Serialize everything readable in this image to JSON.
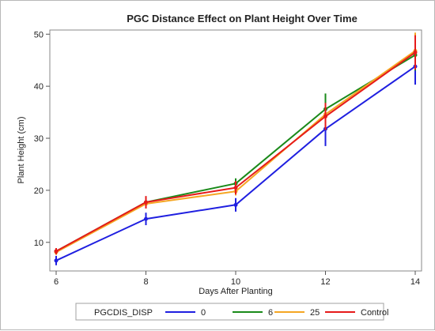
{
  "chart_data": {
    "type": "line",
    "title": "PGC Distance Effect on Plant Height Over Time",
    "xlabel": "Days After Planting",
    "ylabel": "Plant Height (cm)",
    "x": [
      6,
      8,
      10,
      12,
      14
    ],
    "xlim": [
      6,
      14
    ],
    "ylim": [
      4.5,
      50.8
    ],
    "xticks": [
      6,
      8,
      10,
      12,
      14
    ],
    "yticks": [
      10,
      20,
      30,
      40,
      50
    ],
    "grid": false,
    "legend": {
      "title": "PGCDIS_DISP",
      "placement": "bottom"
    },
    "series": [
      {
        "name": "0",
        "color": "#1f1fe0",
        "values": [
          6.5,
          14.5,
          17.2,
          31.8,
          43.8
        ],
        "errors": [
          0.9,
          1.2,
          1.3,
          3.3,
          3.5
        ]
      },
      {
        "name": "6",
        "color": "#1a8a1a",
        "values": [
          8.3,
          17.7,
          21.3,
          35.6,
          46.0
        ],
        "errors": [
          0.5,
          0.8,
          1.0,
          3.0,
          3.0
        ]
      },
      {
        "name": "25",
        "color": "#f5a623",
        "values": [
          8.1,
          17.4,
          19.8,
          34.6,
          46.8
        ],
        "errors": [
          0.5,
          0.8,
          0.8,
          2.0,
          3.5
        ]
      },
      {
        "name": "Control",
        "color": "#e61a1a",
        "values": [
          8.3,
          17.7,
          20.5,
          34.2,
          46.5
        ],
        "errors": [
          0.6,
          1.2,
          1.3,
          2.6,
          3.3
        ]
      }
    ]
  }
}
